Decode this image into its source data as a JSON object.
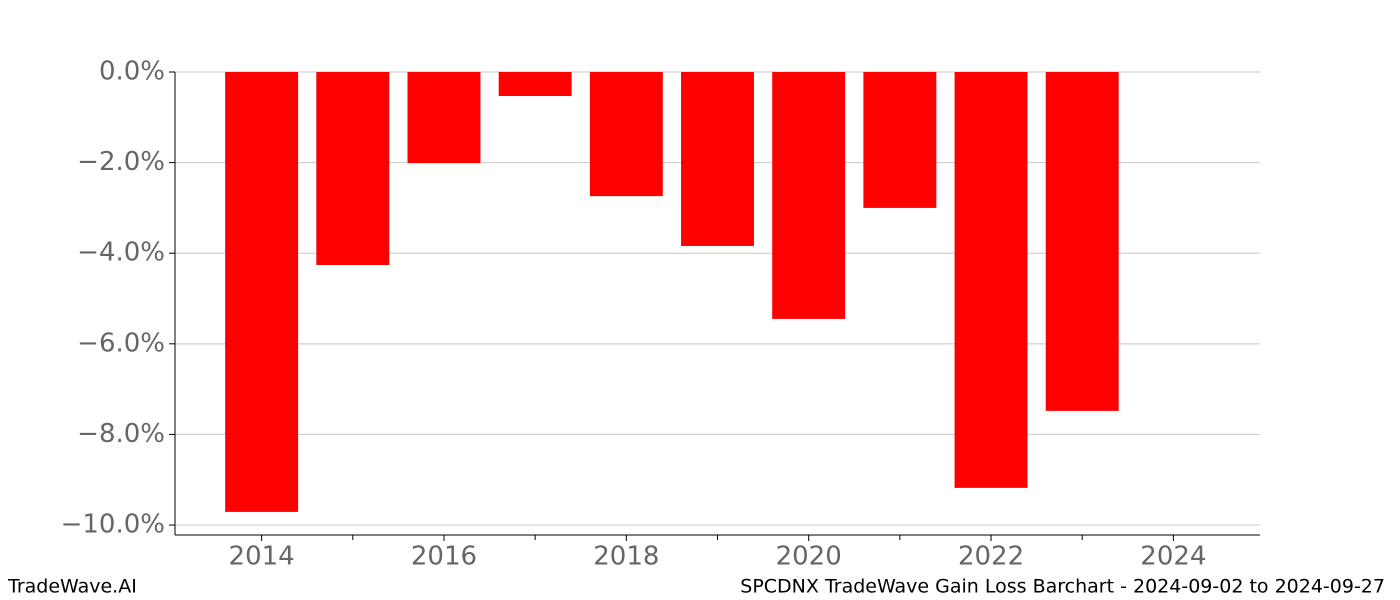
{
  "chart_data": {
    "type": "bar",
    "title": "SPCDNX TradeWave Gain Loss Barchart - 2024-09-02 to 2024-09-27",
    "watermark": "TradeWave.AI",
    "x": [
      2014,
      2015,
      2016,
      2017,
      2018,
      2019,
      2020,
      2021,
      2022,
      2023
    ],
    "values": [
      -9.71,
      -4.26,
      -2.01,
      -0.53,
      -2.74,
      -3.84,
      -5.45,
      -3.0,
      -9.18,
      -7.48
    ],
    "color": "#ff0000",
    "bar_width": 0.8,
    "xlim": [
      2013.05,
      2024.95
    ],
    "xticks": [
      2014,
      2016,
      2018,
      2020,
      2022,
      2024
    ],
    "xticks_minor": [
      2015,
      2017,
      2019,
      2021,
      2023
    ],
    "ylim": [
      -10.22,
      0
    ],
    "yticks": [
      {
        "value": 0,
        "label": "0.0%"
      },
      {
        "value": -2,
        "label": "−2.0%"
      },
      {
        "value": -4,
        "label": "−4.0%"
      },
      {
        "value": -6,
        "label": "−6.0%"
      },
      {
        "value": -8,
        "label": "−8.0%"
      },
      {
        "value": -10,
        "label": "−10.0%"
      }
    ],
    "grid": true
  }
}
